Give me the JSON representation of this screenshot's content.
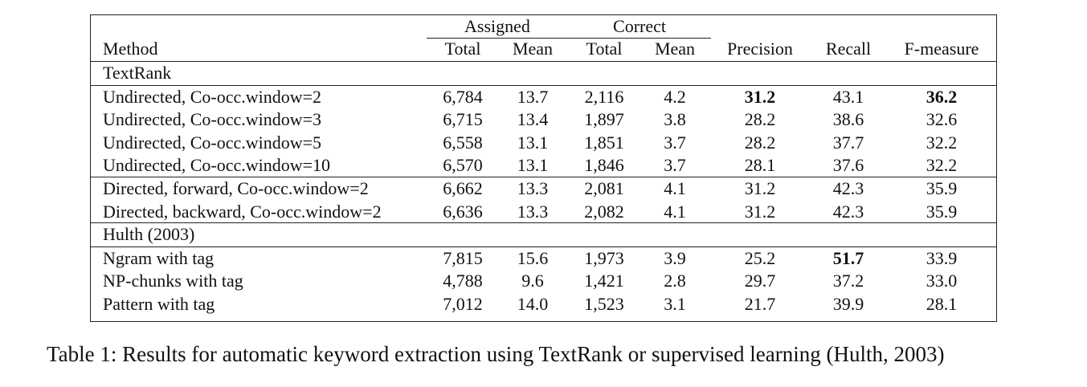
{
  "table": {
    "group_headers": {
      "assigned": "Assigned",
      "correct": "Correct"
    },
    "columns": [
      "Method",
      "Total",
      "Mean",
      "Total",
      "Mean",
      "Precision",
      "Recall",
      "F-measure"
    ],
    "sections": [
      {
        "title": "TextRank",
        "blocks": [
          [
            {
              "cells": [
                "Undirected, Co-occ.window=2",
                "6,784",
                "13.7",
                "2,116",
                "4.2",
                "31.2",
                "43.1",
                "36.2"
              ],
              "bold": [
                5,
                7
              ]
            },
            {
              "cells": [
                "Undirected, Co-occ.window=3",
                "6,715",
                "13.4",
                "1,897",
                "3.8",
                "28.2",
                "38.6",
                "32.6"
              ],
              "bold": []
            },
            {
              "cells": [
                "Undirected, Co-occ.window=5",
                "6,558",
                "13.1",
                "1,851",
                "3.7",
                "28.2",
                "37.7",
                "32.2"
              ],
              "bold": []
            },
            {
              "cells": [
                "Undirected, Co-occ.window=10",
                "6,570",
                "13.1",
                "1,846",
                "3.7",
                "28.1",
                "37.6",
                "32.2"
              ],
              "bold": []
            }
          ],
          [
            {
              "cells": [
                "Directed, forward, Co-occ.window=2",
                "6,662",
                "13.3",
                "2,081",
                "4.1",
                "31.2",
                "42.3",
                "35.9"
              ],
              "bold": []
            },
            {
              "cells": [
                "Directed, backward, Co-occ.window=2",
                "6,636",
                "13.3",
                "2,082",
                "4.1",
                "31.2",
                "42.3",
                "35.9"
              ],
              "bold": []
            }
          ]
        ]
      },
      {
        "title": "Hulth (2003)",
        "blocks": [
          [
            {
              "cells": [
                "Ngram with tag",
                "7,815",
                "15.6",
                "1,973",
                "3.9",
                "25.2",
                "51.7",
                "33.9"
              ],
              "bold": [
                6
              ]
            },
            {
              "cells": [
                "NP-chunks with tag",
                "4,788",
                "9.6",
                "1,421",
                "2.8",
                "29.7",
                "37.2",
                "33.0"
              ],
              "bold": []
            },
            {
              "cells": [
                "Pattern with tag",
                "7,012",
                "14.0",
                "1,523",
                "3.1",
                "21.7",
                "39.9",
                "28.1"
              ],
              "bold": []
            }
          ]
        ]
      }
    ]
  },
  "caption": "Table 1: Results for automatic keyword extraction using TextRank or supervised learning (Hulth, 2003)"
}
